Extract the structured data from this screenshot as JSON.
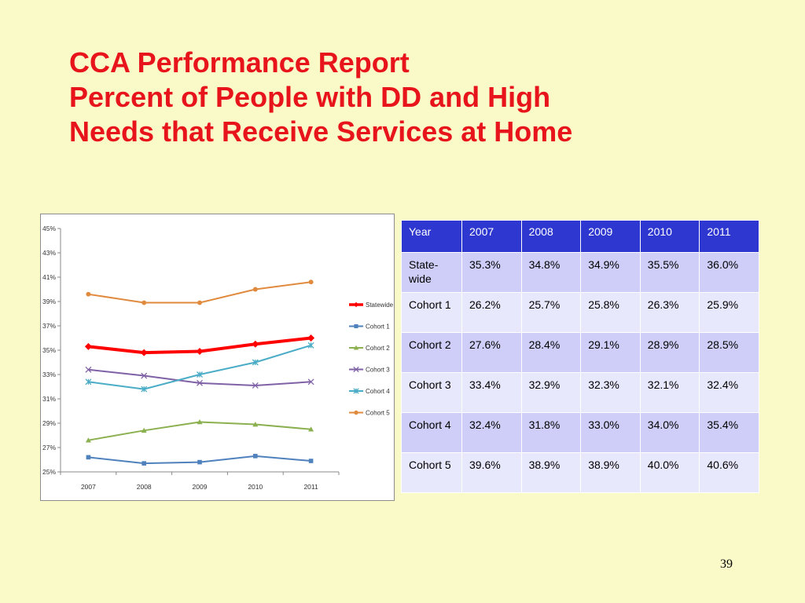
{
  "slide": {
    "title_lines": [
      "CCA Performance Report",
      "Percent of People with DD and High",
      "Needs that Receive Services at Home"
    ],
    "page_number": "39"
  },
  "table": {
    "header": [
      "Year",
      "2007",
      "2008",
      "2009",
      "2010",
      "2011"
    ],
    "rows": [
      {
        "label": "State-wide",
        "values": [
          "35.3%",
          "34.8%",
          "34.9%",
          "35.5%",
          "36.0%"
        ]
      },
      {
        "label": "Cohort 1",
        "values": [
          "26.2%",
          "25.7%",
          "25.8%",
          "26.3%",
          "25.9%"
        ]
      },
      {
        "label": "Cohort 2",
        "values": [
          "27.6%",
          "28.4%",
          "29.1%",
          "28.9%",
          "28.5%"
        ]
      },
      {
        "label": "Cohort 3",
        "values": [
          "33.4%",
          "32.9%",
          "32.3%",
          "32.1%",
          "32.4%"
        ]
      },
      {
        "label": "Cohort 4",
        "values": [
          "32.4%",
          "31.8%",
          "33.0%",
          "34.0%",
          "35.4%"
        ]
      },
      {
        "label": "Cohort 5",
        "values": [
          "39.6%",
          "38.9%",
          "38.9%",
          "40.0%",
          "40.6%"
        ]
      }
    ]
  },
  "chart_data": {
    "type": "line",
    "categories": [
      "2007",
      "2008",
      "2009",
      "2010",
      "2011"
    ],
    "ylim": [
      0.25,
      0.45
    ],
    "y_ticks": [
      "45%",
      "43%",
      "41%",
      "39%",
      "37%",
      "35%",
      "33%",
      "31%",
      "29%",
      "27%",
      "25%"
    ],
    "y_tick_values": [
      0.45,
      0.43,
      0.41,
      0.39,
      0.37,
      0.35,
      0.33,
      0.31,
      0.29,
      0.27,
      0.25
    ],
    "grid": false,
    "legend_position": "right",
    "series": [
      {
        "name": "Statewide",
        "color": "#FF0000",
        "marker": "diamond",
        "values": [
          0.353,
          0.348,
          0.349,
          0.355,
          0.36
        ]
      },
      {
        "name": "Cohort 1",
        "color": "#4F81BD",
        "marker": "square",
        "values": [
          0.262,
          0.257,
          0.258,
          0.263,
          0.259
        ]
      },
      {
        "name": "Cohort 2",
        "color": "#8BB04F",
        "marker": "triangle",
        "values": [
          0.276,
          0.284,
          0.291,
          0.289,
          0.285
        ]
      },
      {
        "name": "Cohort 3",
        "color": "#7F61A6",
        "marker": "x",
        "values": [
          0.334,
          0.329,
          0.323,
          0.321,
          0.324
        ]
      },
      {
        "name": "Cohort 4",
        "color": "#4AACC6",
        "marker": "star",
        "values": [
          0.324,
          0.318,
          0.33,
          0.34,
          0.354
        ]
      },
      {
        "name": "Cohort 5",
        "color": "#E08A3E",
        "marker": "circle",
        "values": [
          0.396,
          0.389,
          0.389,
          0.4,
          0.406
        ]
      }
    ]
  }
}
